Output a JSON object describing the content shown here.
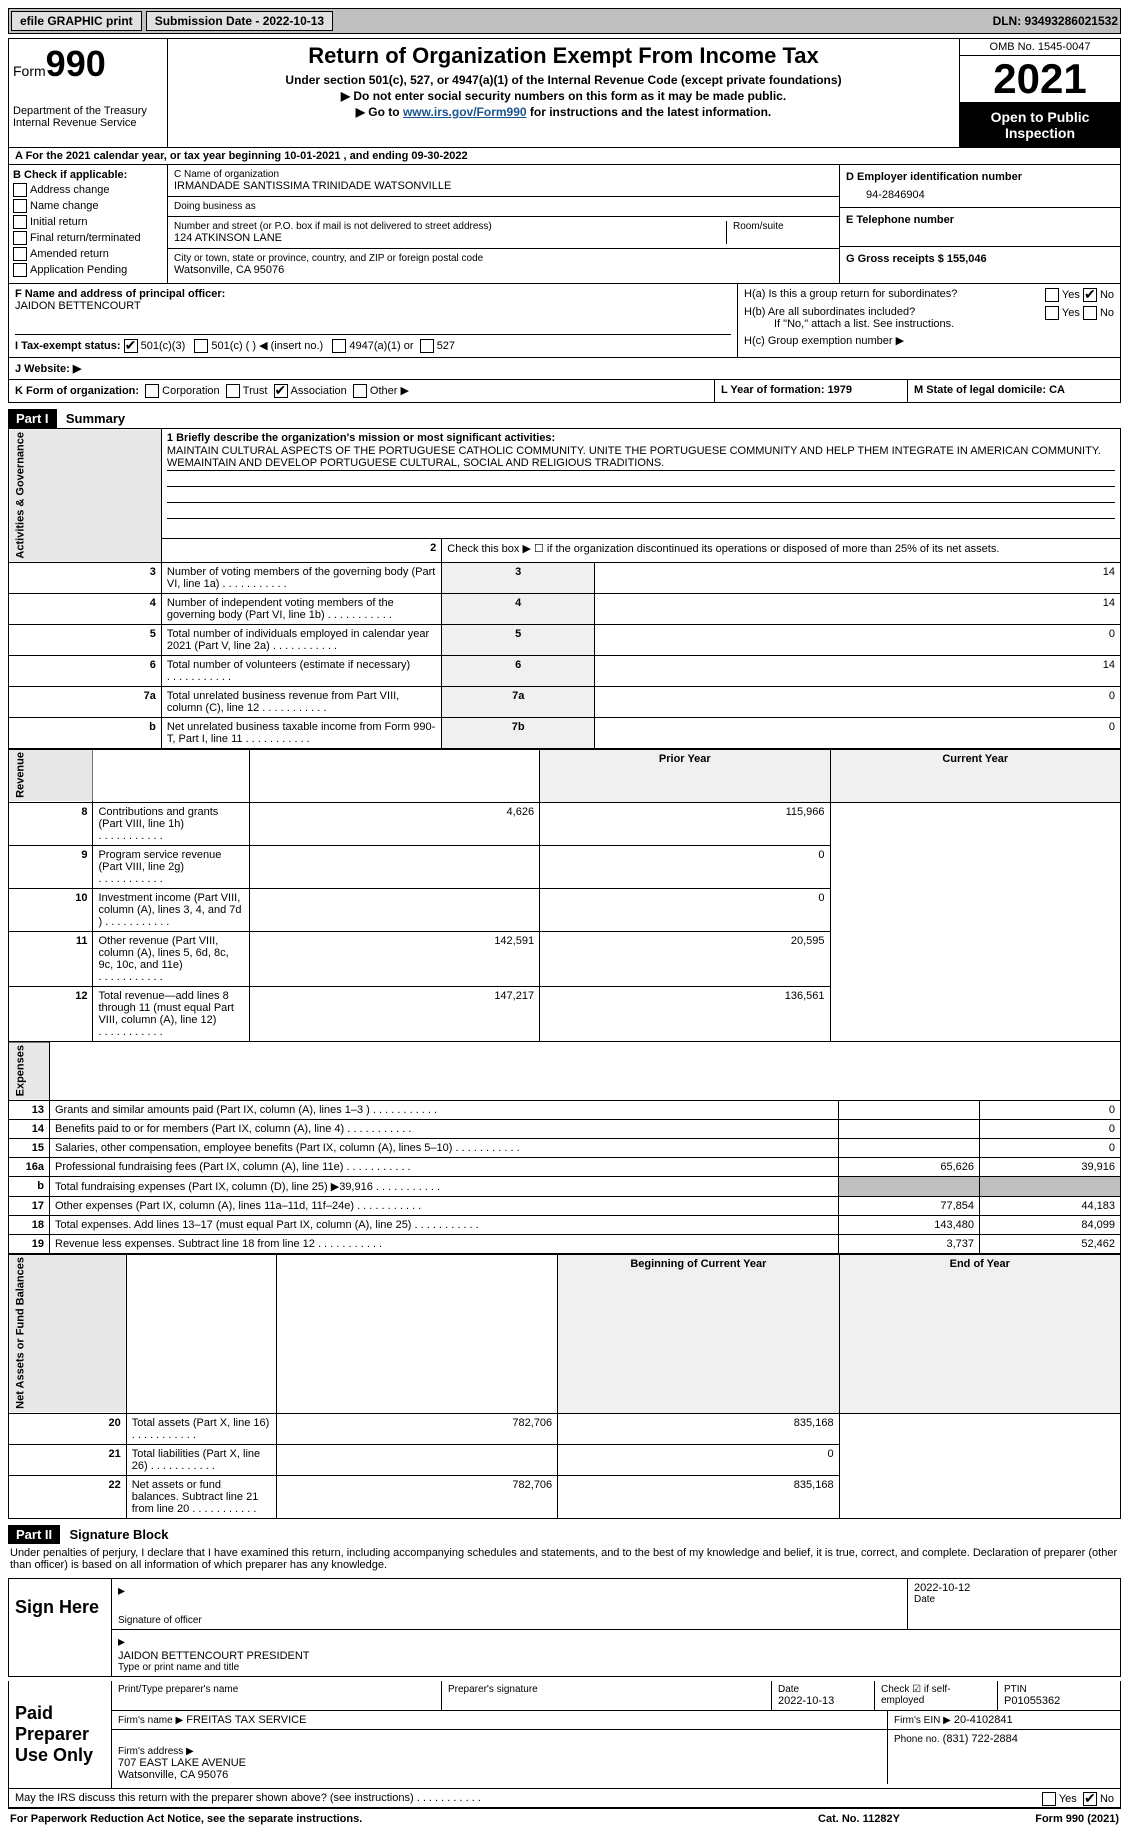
{
  "topbar": {
    "efile": "efile GRAPHIC print",
    "sub_label": "Submission Date - 2022-10-13",
    "dln": "DLN: 93493286021532"
  },
  "header": {
    "form_word": "Form",
    "form_num": "990",
    "dept": "Department of the Treasury\nInternal Revenue Service",
    "title": "Return of Organization Exempt From Income Tax",
    "sub1": "Under section 501(c), 527, or 4947(a)(1) of the Internal Revenue Code (except private foundations)",
    "sub2": "▶ Do not enter social security numbers on this form as it may be made public.",
    "sub3_pre": "▶ Go to ",
    "sub3_link": "www.irs.gov/Form990",
    "sub3_post": " for instructions and the latest information.",
    "omb": "OMB No. 1545-0047",
    "year": "2021",
    "open": "Open to Public Inspection"
  },
  "row_a": "A For the 2021 calendar year, or tax year beginning 10-01-2021   , and ending 09-30-2022",
  "section_b": {
    "title": "B Check if applicable:",
    "items": [
      "Address change",
      "Name change",
      "Initial return",
      "Final return/terminated",
      "Amended return",
      "Application Pending"
    ]
  },
  "section_c": {
    "name_label": "C Name of organization",
    "name": "IRMANDADE SANTISSIMA TRINIDADE WATSONVILLE",
    "dba_label": "Doing business as",
    "dba": "",
    "addr_label": "Number and street (or P.O. box if mail is not delivered to street address)",
    "addr": "124 ATKINSON LANE",
    "room_label": "Room/suite",
    "city_label": "City or town, state or province, country, and ZIP or foreign postal code",
    "city": "Watsonville, CA  95076"
  },
  "section_d": {
    "label": "D Employer identification number",
    "value": "94-2846904"
  },
  "section_e": {
    "label": "E Telephone number",
    "value": ""
  },
  "section_g": {
    "label": "G Gross receipts $ 155,046"
  },
  "section_f": {
    "label": "F Name and address of principal officer:",
    "value": "JAIDON BETTENCOURT"
  },
  "section_h": {
    "a": "H(a)  Is this a group return for subordinates?",
    "b": "H(b)  Are all subordinates included?",
    "note": "If \"No,\" attach a list. See instructions.",
    "c": "H(c)  Group exemption number ▶",
    "yes": "Yes",
    "no": "No"
  },
  "tax_exempt": {
    "label": "I   Tax-exempt status:",
    "c3": "501(c)(3)",
    "c_other": "501(c) (  ) ◀ (insert no.)",
    "a1": "4947(a)(1) or",
    "s527": "527"
  },
  "website": {
    "label": "J   Website: ▶",
    "value": ""
  },
  "row_k": {
    "label": "K Form of organization:",
    "opts": [
      "Corporation",
      "Trust",
      "Association",
      "Other ▶"
    ],
    "checked_idx": 2
  },
  "row_l": {
    "label": "L Year of formation: 1979"
  },
  "row_m": {
    "label": "M State of legal domicile: CA"
  },
  "part1": {
    "header": "Part I",
    "title": "Summary",
    "q1_label": "1  Briefly describe the organization's mission or most significant activities:",
    "mission": "MAINTAIN CULTURAL ASPECTS OF THE PORTUGUESE CATHOLIC COMMUNITY. UNITE THE PORTUGUESE COMMUNITY AND HELP THEM INTEGRATE IN AMERICAN COMMUNITY. WEMAINTAIN AND DEVELOP PORTUGUESE CULTURAL, SOCIAL AND RELIGIOUS TRADITIONS.",
    "q2": "Check this box ▶ ☐ if the organization discontinued its operations or disposed of more than 25% of its net assets.",
    "groups": {
      "gov": "Activities & Governance",
      "rev": "Revenue",
      "exp": "Expenses",
      "net": "Net Assets or Fund Balances"
    },
    "lines_single": [
      {
        "n": "3",
        "t": "Number of voting members of the governing body (Part VI, line 1a)",
        "box": "3",
        "v": "14"
      },
      {
        "n": "4",
        "t": "Number of independent voting members of the governing body (Part VI, line 1b)",
        "box": "4",
        "v": "14"
      },
      {
        "n": "5",
        "t": "Total number of individuals employed in calendar year 2021 (Part V, line 2a)",
        "box": "5",
        "v": "0"
      },
      {
        "n": "6",
        "t": "Total number of volunteers (estimate if necessary)",
        "box": "6",
        "v": "14"
      },
      {
        "n": "7a",
        "t": "Total unrelated business revenue from Part VIII, column (C), line 12",
        "box": "7a",
        "v": "0"
      },
      {
        "n": "b",
        "t": "Net unrelated business taxable income from Form 990-T, Part I, line 11",
        "box": "7b",
        "v": "0"
      }
    ],
    "col_headers": {
      "prior": "Prior Year",
      "current": "Current Year",
      "beg": "Beginning of Current Year",
      "end": "End of Year"
    },
    "rev_lines": [
      {
        "n": "8",
        "t": "Contributions and grants (Part VIII, line 1h)",
        "p": "4,626",
        "c": "115,966"
      },
      {
        "n": "9",
        "t": "Program service revenue (Part VIII, line 2g)",
        "p": "",
        "c": "0"
      },
      {
        "n": "10",
        "t": "Investment income (Part VIII, column (A), lines 3, 4, and 7d )",
        "p": "",
        "c": "0"
      },
      {
        "n": "11",
        "t": "Other revenue (Part VIII, column (A), lines 5, 6d, 8c, 9c, 10c, and 11e)",
        "p": "142,591",
        "c": "20,595"
      },
      {
        "n": "12",
        "t": "Total revenue—add lines 8 through 11 (must equal Part VIII, column (A), line 12)",
        "p": "147,217",
        "c": "136,561"
      }
    ],
    "exp_lines": [
      {
        "n": "13",
        "t": "Grants and similar amounts paid (Part IX, column (A), lines 1–3 )",
        "p": "",
        "c": "0"
      },
      {
        "n": "14",
        "t": "Benefits paid to or for members (Part IX, column (A), line 4)",
        "p": "",
        "c": "0"
      },
      {
        "n": "15",
        "t": "Salaries, other compensation, employee benefits (Part IX, column (A), lines 5–10)",
        "p": "",
        "c": "0"
      },
      {
        "n": "16a",
        "t": "Professional fundraising fees (Part IX, column (A), line 11e)",
        "p": "65,626",
        "c": "39,916"
      },
      {
        "n": "b",
        "t": "Total fundraising expenses (Part IX, column (D), line 25) ▶39,916",
        "p": "SHADE",
        "c": "SHADE"
      },
      {
        "n": "17",
        "t": "Other expenses (Part IX, column (A), lines 11a–11d, 11f–24e)",
        "p": "77,854",
        "c": "44,183"
      },
      {
        "n": "18",
        "t": "Total expenses. Add lines 13–17 (must equal Part IX, column (A), line 25)",
        "p": "143,480",
        "c": "84,099"
      },
      {
        "n": "19",
        "t": "Revenue less expenses. Subtract line 18 from line 12",
        "p": "3,737",
        "c": "52,462"
      }
    ],
    "net_lines": [
      {
        "n": "20",
        "t": "Total assets (Part X, line 16)",
        "p": "782,706",
        "c": "835,168"
      },
      {
        "n": "21",
        "t": "Total liabilities (Part X, line 26)",
        "p": "",
        "c": "0"
      },
      {
        "n": "22",
        "t": "Net assets or fund balances. Subtract line 21 from line 20",
        "p": "782,706",
        "c": "835,168"
      }
    ]
  },
  "part2": {
    "header": "Part II",
    "title": "Signature Block",
    "decl": "Under penalties of perjury, I declare that I have examined this return, including accompanying schedules and statements, and to the best of my knowledge and belief, it is true, correct, and complete. Declaration of preparer (other than officer) is based on all information of which preparer has any knowledge.",
    "sign_here": "Sign Here",
    "sig_officer": "Signature of officer",
    "sig_date": "2022-10-12",
    "date_label": "Date",
    "officer_name": "JAIDON BETTENCOURT  PRESIDENT",
    "type_name": "Type or print name and title",
    "paid": "Paid Preparer Use Only",
    "print_label": "Print/Type preparer's name",
    "prep_sig_label": "Preparer's signature",
    "prep_date_label": "Date",
    "prep_date": "2022-10-13",
    "check_self": "Check ☑ if self-employed",
    "ptin_label": "PTIN",
    "ptin": "P01055362",
    "firm_name_label": "Firm's name     ▶",
    "firm_name": "FREITAS TAX SERVICE",
    "firm_ein_label": "Firm's EIN ▶",
    "firm_ein": "20-4102841",
    "firm_addr_label": "Firm's address ▶",
    "firm_addr": "707 EAST LAKE AVENUE\nWatsonville, CA  95076",
    "phone_label": "Phone no.",
    "phone": "(831) 722-2884",
    "discuss": "May the IRS discuss this return with the preparer shown above? (see instructions)",
    "yes": "Yes",
    "no": "No"
  },
  "footer": {
    "left": "For Paperwork Reduction Act Notice, see the separate instructions.",
    "mid": "Cat. No. 11282Y",
    "right": "Form 990 (2021)"
  }
}
